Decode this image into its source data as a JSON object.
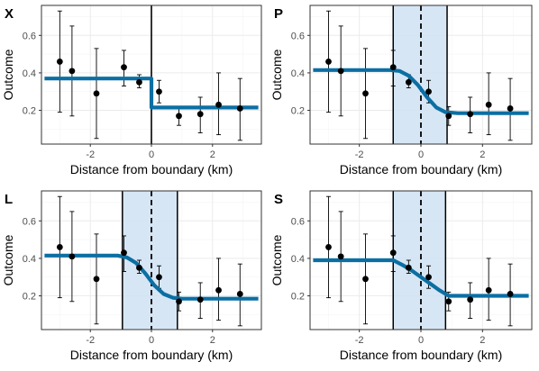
{
  "colors": {
    "fit": "#0b6fa3",
    "band_fill": "#cfe2f3",
    "grid": "#ebebeb",
    "grid_minor": "#f5f5f5",
    "point": "#000000"
  },
  "chart_data": [
    {
      "type": "scatter",
      "panel": "X",
      "xlabel": "Distance from boundary (km)",
      "ylabel": "Outcome",
      "xlim": [
        -3.6,
        3.6
      ],
      "ylim": [
        0.02,
        0.76
      ],
      "xticks": [
        -2,
        0,
        2
      ],
      "yticks": [
        0.2,
        0.4,
        0.6
      ],
      "grid": true,
      "boundary_line": {
        "x": 0,
        "style": "solid"
      },
      "band": null,
      "points": [
        {
          "x": -3.0,
          "y": 0.46,
          "ymin": 0.19,
          "ymax": 0.73
        },
        {
          "x": -2.6,
          "y": 0.41,
          "ymin": 0.17,
          "ymax": 0.65
        },
        {
          "x": -1.8,
          "y": 0.29,
          "ymin": 0.05,
          "ymax": 0.53
        },
        {
          "x": -0.9,
          "y": 0.43,
          "ymin": 0.33,
          "ymax": 0.52
        },
        {
          "x": -0.4,
          "y": 0.35,
          "ymin": 0.32,
          "ymax": 0.39
        },
        {
          "x": 0.25,
          "y": 0.3,
          "ymin": 0.24,
          "ymax": 0.36
        },
        {
          "x": 0.9,
          "y": 0.17,
          "ymin": 0.12,
          "ymax": 0.22
        },
        {
          "x": 1.6,
          "y": 0.18,
          "ymin": 0.08,
          "ymax": 0.27
        },
        {
          "x": 2.2,
          "y": 0.23,
          "ymin": 0.07,
          "ymax": 0.4
        },
        {
          "x": 2.9,
          "y": 0.21,
          "ymin": 0.04,
          "ymax": 0.37
        }
      ],
      "fit": [
        [
          -3.5,
          0.37
        ],
        [
          0,
          0.37
        ],
        [
          0,
          0.215
        ],
        [
          3.5,
          0.215
        ]
      ]
    },
    {
      "type": "scatter",
      "panel": "P",
      "xlabel": "Distance from boundary (km)",
      "ylabel": "Outcome",
      "xlim": [
        -3.6,
        3.6
      ],
      "ylim": [
        0.02,
        0.76
      ],
      "xticks": [
        -2,
        0,
        2
      ],
      "yticks": [
        0.2,
        0.4,
        0.6
      ],
      "grid": true,
      "boundary_line": {
        "x": 0,
        "style": "dashed"
      },
      "band": [
        -0.9,
        0.85
      ],
      "points": [
        {
          "x": -3.0,
          "y": 0.46,
          "ymin": 0.19,
          "ymax": 0.73
        },
        {
          "x": -2.6,
          "y": 0.41,
          "ymin": 0.17,
          "ymax": 0.65
        },
        {
          "x": -1.8,
          "y": 0.29,
          "ymin": 0.05,
          "ymax": 0.53
        },
        {
          "x": -0.9,
          "y": 0.43,
          "ymin": 0.33,
          "ymax": 0.52
        },
        {
          "x": -0.4,
          "y": 0.35,
          "ymin": 0.32,
          "ymax": 0.39
        },
        {
          "x": 0.25,
          "y": 0.3,
          "ymin": 0.24,
          "ymax": 0.36
        },
        {
          "x": 0.9,
          "y": 0.17,
          "ymin": 0.12,
          "ymax": 0.22
        },
        {
          "x": 1.6,
          "y": 0.18,
          "ymin": 0.08,
          "ymax": 0.27
        },
        {
          "x": 2.2,
          "y": 0.23,
          "ymin": 0.07,
          "ymax": 0.4
        },
        {
          "x": 2.9,
          "y": 0.21,
          "ymin": 0.04,
          "ymax": 0.37
        }
      ],
      "fit": [
        [
          -3.5,
          0.415
        ],
        [
          -1.0,
          0.415
        ],
        [
          -0.7,
          0.41
        ],
        [
          -0.4,
          0.385
        ],
        [
          -0.1,
          0.335
        ],
        [
          0.2,
          0.27
        ],
        [
          0.5,
          0.215
        ],
        [
          0.8,
          0.19
        ],
        [
          1.2,
          0.185
        ],
        [
          3.5,
          0.185
        ]
      ]
    },
    {
      "type": "scatter",
      "panel": "L",
      "xlabel": "Distance from boundary (km)",
      "ylabel": "Outcome",
      "xlim": [
        -3.6,
        3.6
      ],
      "ylim": [
        0.02,
        0.76
      ],
      "xticks": [
        -2,
        0,
        2
      ],
      "yticks": [
        0.2,
        0.4,
        0.6
      ],
      "grid": true,
      "boundary_line": {
        "x": 0,
        "style": "dashed"
      },
      "band": [
        -0.95,
        0.85
      ],
      "points": [
        {
          "x": -3.0,
          "y": 0.46,
          "ymin": 0.19,
          "ymax": 0.73
        },
        {
          "x": -2.6,
          "y": 0.41,
          "ymin": 0.17,
          "ymax": 0.65
        },
        {
          "x": -1.8,
          "y": 0.29,
          "ymin": 0.05,
          "ymax": 0.53
        },
        {
          "x": -0.9,
          "y": 0.43,
          "ymin": 0.33,
          "ymax": 0.52
        },
        {
          "x": -0.4,
          "y": 0.35,
          "ymin": 0.32,
          "ymax": 0.39
        },
        {
          "x": 0.25,
          "y": 0.3,
          "ymin": 0.24,
          "ymax": 0.36
        },
        {
          "x": 0.9,
          "y": 0.17,
          "ymin": 0.12,
          "ymax": 0.22
        },
        {
          "x": 1.6,
          "y": 0.18,
          "ymin": 0.08,
          "ymax": 0.27
        },
        {
          "x": 2.2,
          "y": 0.23,
          "ymin": 0.07,
          "ymax": 0.4
        },
        {
          "x": 2.9,
          "y": 0.21,
          "ymin": 0.04,
          "ymax": 0.37
        }
      ],
      "fit": [
        [
          -3.5,
          0.415
        ],
        [
          -1.1,
          0.415
        ],
        [
          -0.8,
          0.405
        ],
        [
          -0.5,
          0.375
        ],
        [
          -0.2,
          0.32
        ],
        [
          0.1,
          0.255
        ],
        [
          0.4,
          0.21
        ],
        [
          0.7,
          0.19
        ],
        [
          1.0,
          0.185
        ],
        [
          3.5,
          0.185
        ]
      ]
    },
    {
      "type": "scatter",
      "panel": "S",
      "xlabel": "Distance from boundary (km)",
      "ylabel": "Outcome",
      "xlim": [
        -3.6,
        3.6
      ],
      "ylim": [
        0.02,
        0.76
      ],
      "xticks": [
        -2,
        0,
        2
      ],
      "yticks": [
        0.2,
        0.4,
        0.6
      ],
      "grid": true,
      "boundary_line": {
        "x": 0,
        "style": "dashed"
      },
      "band": [
        -0.9,
        0.8
      ],
      "points": [
        {
          "x": -3.0,
          "y": 0.46,
          "ymin": 0.19,
          "ymax": 0.73
        },
        {
          "x": -2.6,
          "y": 0.41,
          "ymin": 0.17,
          "ymax": 0.65
        },
        {
          "x": -1.8,
          "y": 0.29,
          "ymin": 0.05,
          "ymax": 0.53
        },
        {
          "x": -0.9,
          "y": 0.43,
          "ymin": 0.33,
          "ymax": 0.52
        },
        {
          "x": -0.4,
          "y": 0.35,
          "ymin": 0.32,
          "ymax": 0.39
        },
        {
          "x": 0.25,
          "y": 0.3,
          "ymin": 0.24,
          "ymax": 0.36
        },
        {
          "x": 0.9,
          "y": 0.17,
          "ymin": 0.12,
          "ymax": 0.22
        },
        {
          "x": 1.6,
          "y": 0.18,
          "ymin": 0.08,
          "ymax": 0.27
        },
        {
          "x": 2.2,
          "y": 0.23,
          "ymin": 0.07,
          "ymax": 0.4
        },
        {
          "x": 2.9,
          "y": 0.21,
          "ymin": 0.04,
          "ymax": 0.37
        }
      ],
      "fit": [
        [
          -3.5,
          0.39
        ],
        [
          -0.9,
          0.39
        ],
        [
          -0.6,
          0.365
        ],
        [
          -0.3,
          0.335
        ],
        [
          0.0,
          0.3
        ],
        [
          0.3,
          0.265
        ],
        [
          0.6,
          0.23
        ],
        [
          0.9,
          0.2
        ],
        [
          3.5,
          0.2
        ]
      ]
    }
  ]
}
